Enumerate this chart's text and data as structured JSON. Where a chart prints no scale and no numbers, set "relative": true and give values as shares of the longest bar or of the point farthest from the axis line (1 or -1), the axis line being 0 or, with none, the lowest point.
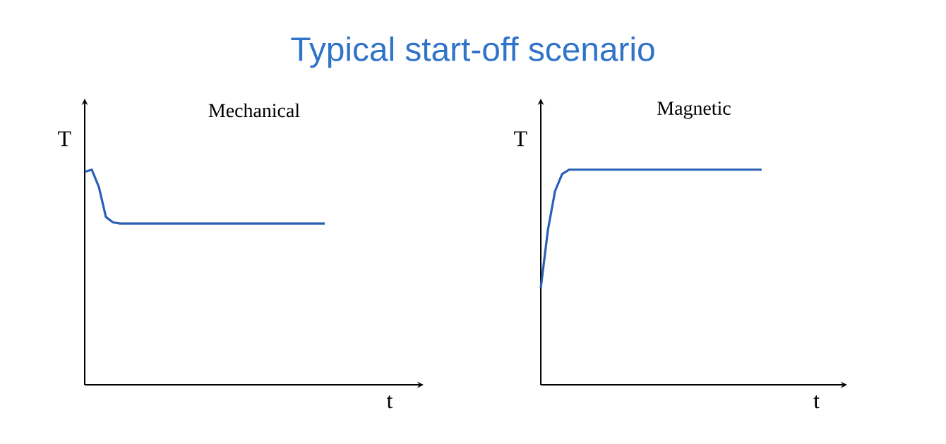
{
  "chart_data": [
    {
      "type": "line",
      "title": "Typical start-off scenario",
      "subtitle": "Mechanical",
      "xlabel": "t",
      "ylabel": "T",
      "relative": true,
      "color": "#2a5fb4",
      "categories": [
        null,
        null,
        null,
        null,
        null,
        null,
        null,
        null,
        null,
        null,
        null,
        null,
        null,
        null,
        null,
        null,
        null,
        null,
        null,
        null,
        null,
        null,
        null,
        null,
        null,
        null,
        null,
        null,
        null,
        null,
        null,
        null,
        null,
        null,
        null,
        null,
        null,
        null,
        null,
        null,
        null,
        null,
        null,
        null,
        null,
        null,
        null,
        null,
        null
      ],
      "values": [
        0.99,
        1.0,
        0.92,
        0.78,
        0.755,
        0.75,
        0.75,
        0.75,
        0.75,
        0.75,
        0.75,
        0.75,
        0.75,
        0.75,
        0.75,
        0.75,
        0.75,
        0.75,
        0.75,
        0.75,
        0.75,
        0.75,
        0.75,
        0.75,
        0.75,
        0.75,
        0.75,
        0.75,
        0.75,
        0.75,
        0.75,
        0.75,
        0.75,
        0.75,
        0.75,
        null,
        null,
        null,
        null,
        null,
        null,
        null,
        null,
        null,
        null,
        null,
        null,
        null,
        null
      ]
    },
    {
      "type": "line",
      "subtitle": "Magnetic",
      "xlabel": "t",
      "ylabel": "T",
      "relative": true,
      "color": "#2a5fb4",
      "categories": [
        null,
        null,
        null,
        null,
        null,
        null,
        null,
        null,
        null,
        null,
        null,
        null,
        null,
        null,
        null,
        null,
        null,
        null,
        null,
        null,
        null,
        null,
        null,
        null,
        null,
        null,
        null,
        null,
        null,
        null,
        null,
        null,
        null,
        null,
        null,
        null,
        null,
        null,
        null,
        null,
        null,
        null,
        null,
        null
      ],
      "values": [
        0.45,
        0.72,
        0.9,
        0.98,
        1.0,
        1.0,
        1.0,
        1.0,
        1.0,
        1.0,
        1.0,
        1.0,
        1.0,
        1.0,
        1.0,
        1.0,
        1.0,
        1.0,
        1.0,
        1.0,
        1.0,
        1.0,
        1.0,
        1.0,
        1.0,
        1.0,
        1.0,
        1.0,
        1.0,
        1.0,
        1.0,
        1.0,
        null,
        null,
        null,
        null,
        null,
        null,
        null,
        null,
        null,
        null,
        null,
        null
      ]
    }
  ]
}
